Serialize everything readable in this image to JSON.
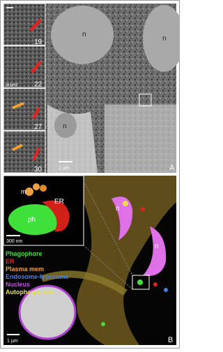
{
  "panel_a": {
    "letter": "A",
    "nucleus_labels": [
      "n",
      "n",
      "n"
    ],
    "inset_numbers": [
      "19",
      "22",
      "27",
      "30"
    ],
    "inset_note": "insert",
    "scale_bar": "1 µm"
  },
  "panel_b": {
    "letter": "B",
    "scale_bar": "1 µm",
    "inset": {
      "labels": [
        "m",
        "ER",
        "ph"
      ],
      "scale_bar": "300 nm"
    },
    "nucleus_labels": [
      "n",
      "n"
    ],
    "legend": [
      {
        "label": "Phagophore",
        "color": "#3fe03a"
      },
      {
        "label": "ER",
        "color": "#e8211b"
      },
      {
        "label": "Plasma mem",
        "color": "#f0a040"
      },
      {
        "label": "Endosome-lysosome",
        "color": "#4a7cf0"
      },
      {
        "label": "Nucleus",
        "color": "#c050e0"
      },
      {
        "label": "Autophagosome",
        "color": "#e8e040"
      }
    ]
  }
}
